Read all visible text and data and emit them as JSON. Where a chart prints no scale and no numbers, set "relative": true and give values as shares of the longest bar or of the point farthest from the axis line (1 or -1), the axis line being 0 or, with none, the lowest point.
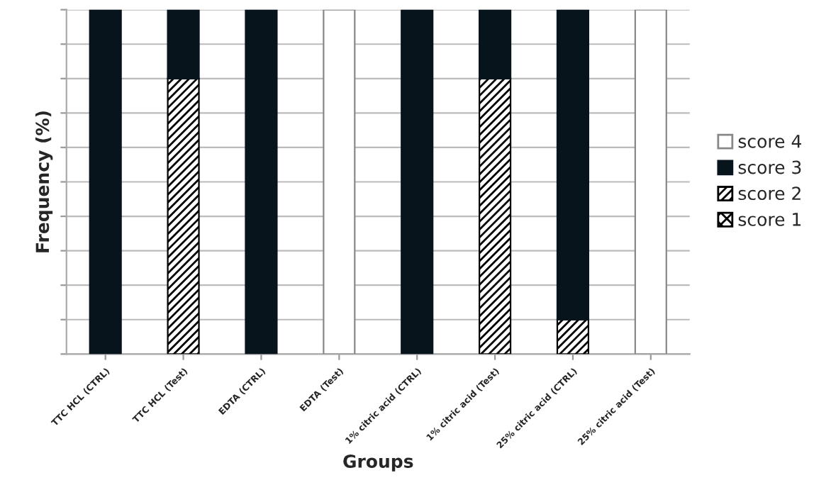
{
  "chart_data": {
    "type": "bar",
    "stacked": true,
    "relative": true,
    "xlabel": "Groups",
    "ylabel": "Frequency (%)",
    "categories": [
      "TTC HCL (CTRL)",
      "TTC HCL (Test)",
      "EDTA (CTRL)",
      "EDTA (Test)",
      "1% citric acid (CTRL)",
      "1% citric acid (Test)",
      "25% citric acid (CTRL)",
      "25% citric acid (Test)"
    ],
    "series": [
      {
        "name": "score 1",
        "color": "#000000",
        "values": [
          0,
          0,
          0,
          0,
          0,
          0,
          0,
          0
        ]
      },
      {
        "name": "score 2",
        "color": "#000000",
        "values": [
          0,
          0.8,
          0,
          0,
          0,
          0.8,
          0.1,
          0
        ]
      },
      {
        "name": "score 3",
        "color": "#08141c",
        "values": [
          1,
          0.2,
          1,
          0,
          1,
          0.2,
          0.9,
          0
        ]
      },
      {
        "name": "score 4",
        "color": "#ffffff",
        "values": [
          0,
          0,
          0,
          1,
          0,
          0,
          0,
          1
        ]
      }
    ],
    "grid": "y",
    "legend": "right",
    "tick_labels": "x"
  }
}
